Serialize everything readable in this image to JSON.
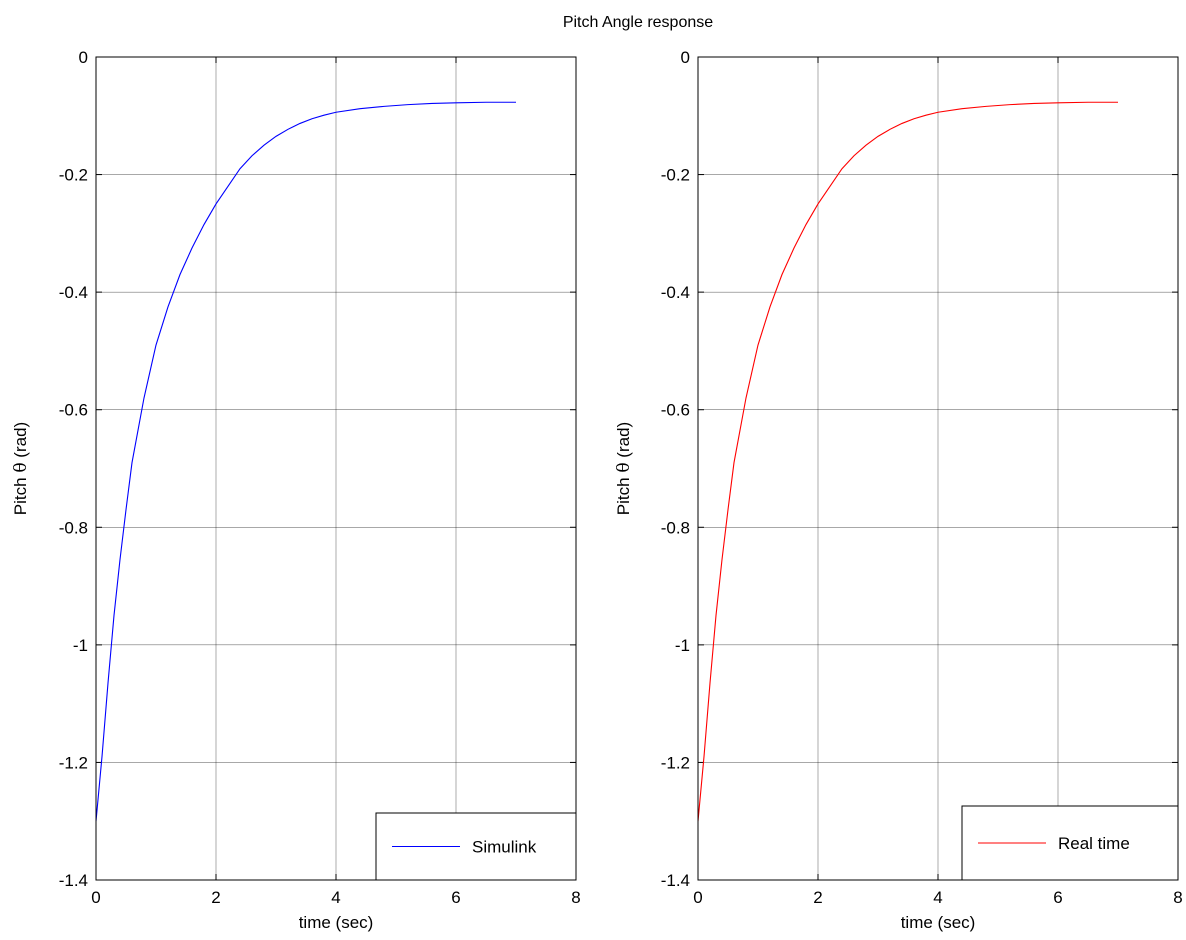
{
  "figure": {
    "title": "Pitch Angle response"
  },
  "chart_data": [
    {
      "type": "line",
      "xlabel": "time (sec)",
      "ylabel_prefix": "Pitch ",
      "ylabel_symbol": "θ",
      "ylabel_suffix": " (rad)",
      "xlim": [
        0,
        8
      ],
      "ylim": [
        -1.4,
        0
      ],
      "xticks": [
        0,
        2,
        4,
        6,
        8
      ],
      "yticks": [
        0,
        -0.2,
        -0.4,
        -0.6,
        -0.8,
        -1,
        -1.2,
        -1.4
      ],
      "xtick_labels": [
        "0",
        "2",
        "4",
        "6",
        "8"
      ],
      "ytick_labels": [
        "0",
        "-0.2",
        "-0.4",
        "-0.6",
        "-0.8",
        "-1",
        "-1.2",
        "-1.4"
      ],
      "grid": true,
      "legend_position": "bottom-right",
      "series": [
        {
          "name": "Simulink",
          "color": "#0000ff",
          "x": [
            0,
            0.1,
            0.2,
            0.3,
            0.4,
            0.5,
            0.6,
            0.8,
            1.0,
            1.2,
            1.4,
            1.6,
            1.8,
            2.0,
            2.2,
            2.4,
            2.6,
            2.8,
            3.0,
            3.2,
            3.4,
            3.6,
            3.8,
            4.0,
            4.4,
            4.8,
            5.2,
            5.6,
            6.0,
            6.5,
            7.0
          ],
          "y": [
            -1.3,
            -1.19,
            -1.065,
            -0.95,
            -0.855,
            -0.77,
            -0.69,
            -0.58,
            -0.49,
            -0.425,
            -0.37,
            -0.325,
            -0.285,
            -0.25,
            -0.22,
            -0.19,
            -0.168,
            -0.15,
            -0.135,
            -0.123,
            -0.113,
            -0.105,
            -0.099,
            -0.094,
            -0.088,
            -0.084,
            -0.081,
            -0.079,
            -0.078,
            -0.077,
            -0.077
          ]
        }
      ]
    },
    {
      "type": "line",
      "xlabel": "time (sec)",
      "ylabel_prefix": "Pitch ",
      "ylabel_symbol": "θ",
      "ylabel_suffix": "  (rad)",
      "xlim": [
        0,
        8
      ],
      "ylim": [
        -1.4,
        0
      ],
      "xticks": [
        0,
        2,
        4,
        6,
        8
      ],
      "yticks": [
        0,
        -0.2,
        -0.4,
        -0.6,
        -0.8,
        -1,
        -1.2,
        -1.4
      ],
      "xtick_labels": [
        "0",
        "2",
        "4",
        "6",
        "8"
      ],
      "ytick_labels": [
        "0",
        "-0.2",
        "-0.4",
        "-0.6",
        "-0.8",
        "-1",
        "-1.2",
        "-1.4"
      ],
      "grid": true,
      "legend_position": "bottom-right",
      "series": [
        {
          "name": "Real time",
          "color": "#ff0000",
          "x": [
            0,
            0.1,
            0.2,
            0.3,
            0.4,
            0.5,
            0.6,
            0.8,
            1.0,
            1.2,
            1.4,
            1.6,
            1.8,
            2.0,
            2.2,
            2.4,
            2.6,
            2.8,
            3.0,
            3.2,
            3.4,
            3.6,
            3.8,
            4.0,
            4.4,
            4.8,
            5.2,
            5.6,
            6.0,
            6.5,
            7.0
          ],
          "y": [
            -1.3,
            -1.19,
            -1.065,
            -0.95,
            -0.855,
            -0.77,
            -0.69,
            -0.58,
            -0.49,
            -0.425,
            -0.37,
            -0.325,
            -0.285,
            -0.25,
            -0.22,
            -0.19,
            -0.168,
            -0.15,
            -0.135,
            -0.123,
            -0.113,
            -0.105,
            -0.099,
            -0.094,
            -0.088,
            -0.084,
            -0.081,
            -0.079,
            -0.078,
            -0.077,
            -0.077
          ]
        }
      ]
    }
  ]
}
